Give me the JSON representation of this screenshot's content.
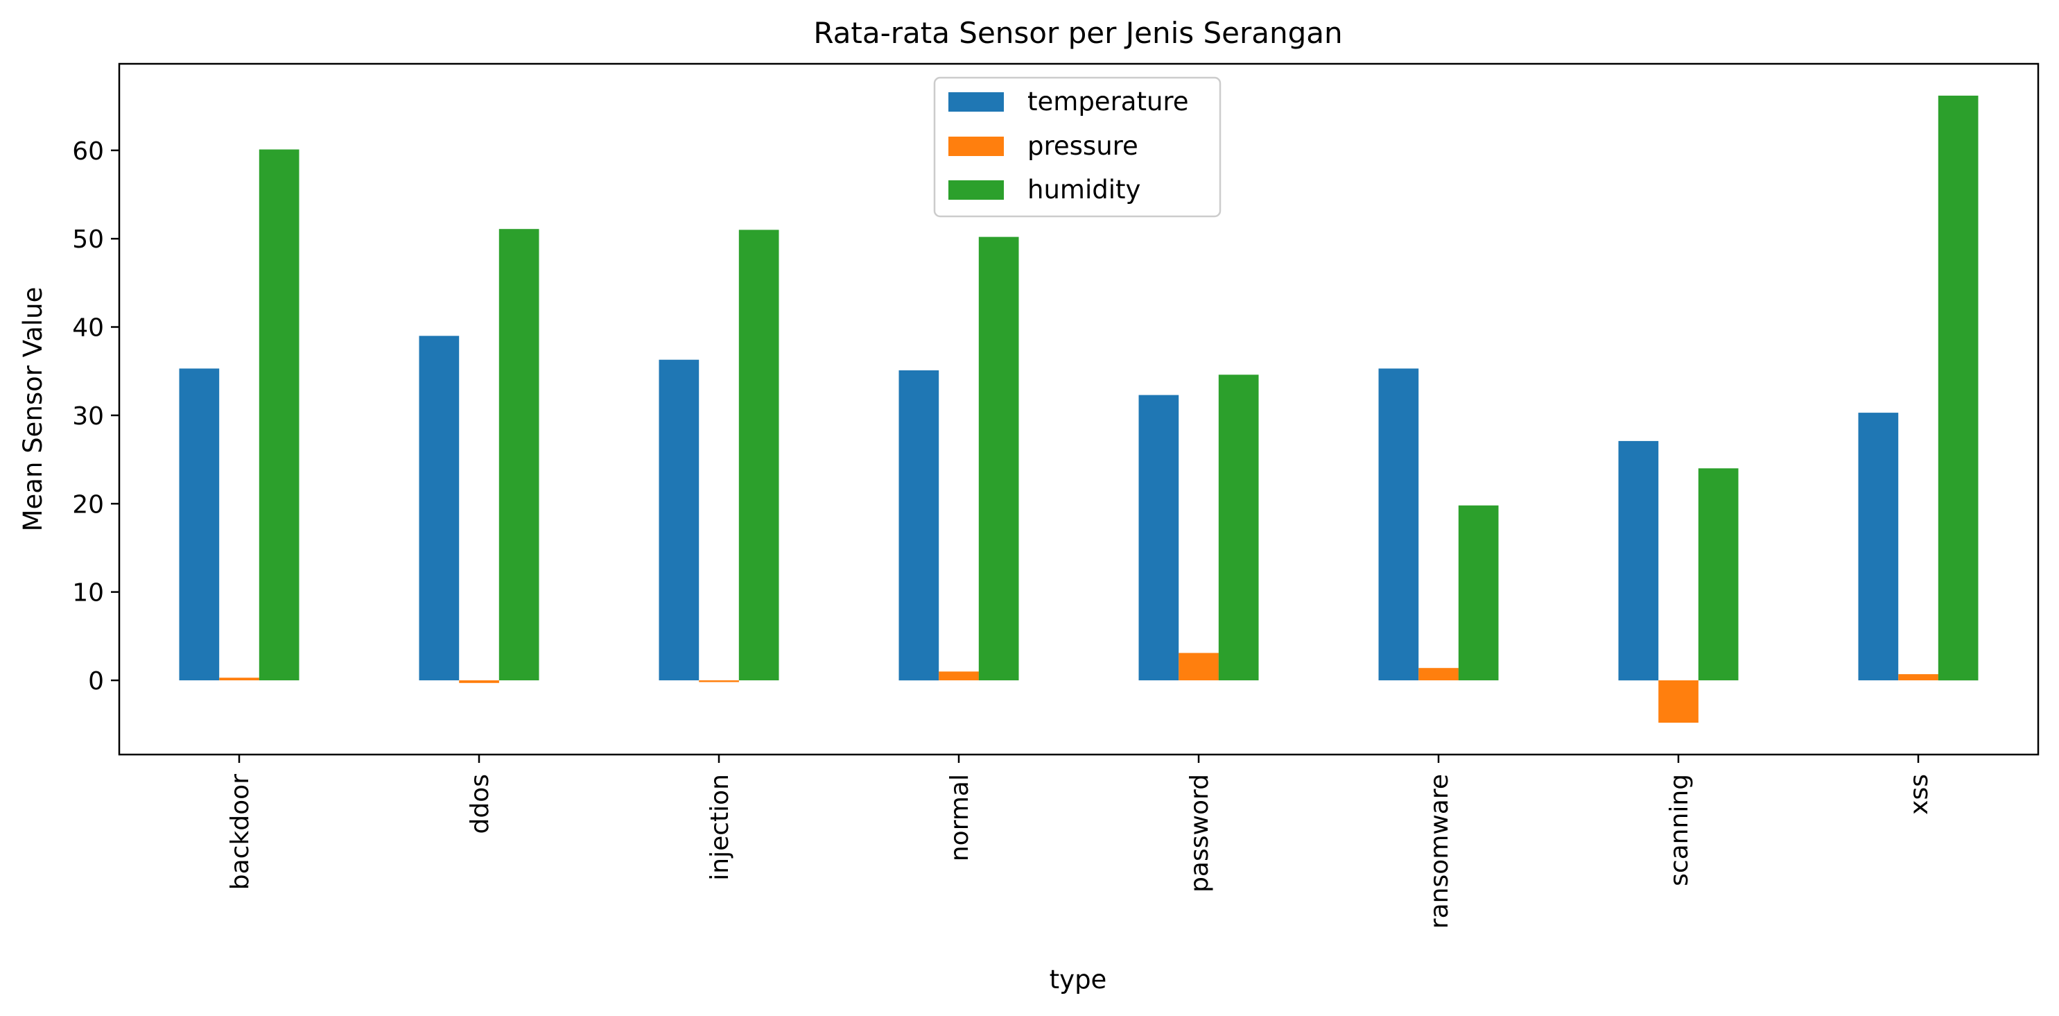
{
  "chart_data": {
    "type": "bar",
    "title": "Rata-rata Sensor per Jenis Serangan",
    "xlabel": "type",
    "ylabel": "Mean Sensor Value",
    "categories": [
      "backdoor",
      "ddos",
      "injection",
      "normal",
      "password",
      "ransomware",
      "scanning",
      "xss"
    ],
    "series": [
      {
        "name": "temperature",
        "color": "#1f77b4",
        "values": [
          35.3,
          39.0,
          36.3,
          35.1,
          32.3,
          35.3,
          27.1,
          30.3
        ]
      },
      {
        "name": "pressure",
        "color": "#ff7f0e",
        "values": [
          0.3,
          -0.3,
          -0.2,
          1.0,
          3.1,
          1.4,
          -4.8,
          0.7
        ]
      },
      {
        "name": "humidity",
        "color": "#2ca02c",
        "values": [
          60.1,
          51.1,
          51.0,
          50.2,
          34.6,
          19.8,
          24.0,
          66.2
        ]
      }
    ],
    "yticks": [
      0,
      10,
      20,
      30,
      40,
      50,
      60
    ],
    "ylim": [
      -8.4,
      69.8
    ],
    "grid": false,
    "legend": "upper center"
  }
}
